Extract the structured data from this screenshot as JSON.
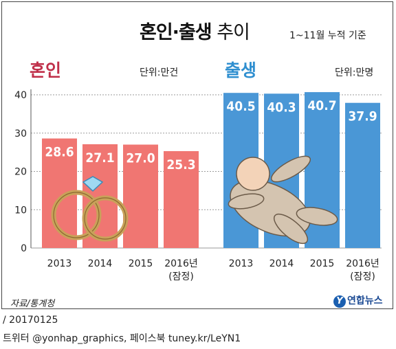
{
  "header": {
    "title_bold": "혼인·출생",
    "title_light": " 추이",
    "subtitle": "1~11월 누적 기준"
  },
  "colors": {
    "marriage_bar": "#f07672",
    "birth_bar": "#4a97d6",
    "marriage_title": "#c0304a",
    "birth_title": "#2f8fd0"
  },
  "groups": {
    "marriage": {
      "title": "혼인",
      "unit": "단위:만건"
    },
    "birth": {
      "title": "출생",
      "unit": "단위:만명"
    }
  },
  "chart_data": {
    "type": "bar",
    "ylim": [
      0,
      40
    ],
    "yticks": [
      "0",
      "10",
      "20",
      "30",
      "40"
    ],
    "grid": true,
    "panels": [
      {
        "name": "혼인",
        "categories": [
          [
            "2013"
          ],
          [
            "2014"
          ],
          [
            "2015"
          ],
          [
            "2016년",
            "(잠정)"
          ]
        ],
        "values": [
          28.6,
          27.1,
          27.0,
          25.3
        ],
        "labels": [
          "28.6",
          "27.1",
          "27.0",
          "25.3"
        ]
      },
      {
        "name": "출생",
        "categories": [
          [
            "2013"
          ],
          [
            "2014"
          ],
          [
            "2015"
          ],
          [
            "2016년",
            "(잠정)"
          ]
        ],
        "values": [
          40.5,
          40.3,
          40.7,
          37.9
        ],
        "labels": [
          "40.5",
          "40.3",
          "40.7",
          "37.9"
        ]
      }
    ]
  },
  "source": "자료/통계청",
  "logo": {
    "mark": "Y",
    "text": "연합뉴스"
  },
  "footer": {
    "date": "/ 20170125",
    "social": "트위터 @yonhap_graphics, 페이스북 tuney.kr/LeYN1"
  }
}
